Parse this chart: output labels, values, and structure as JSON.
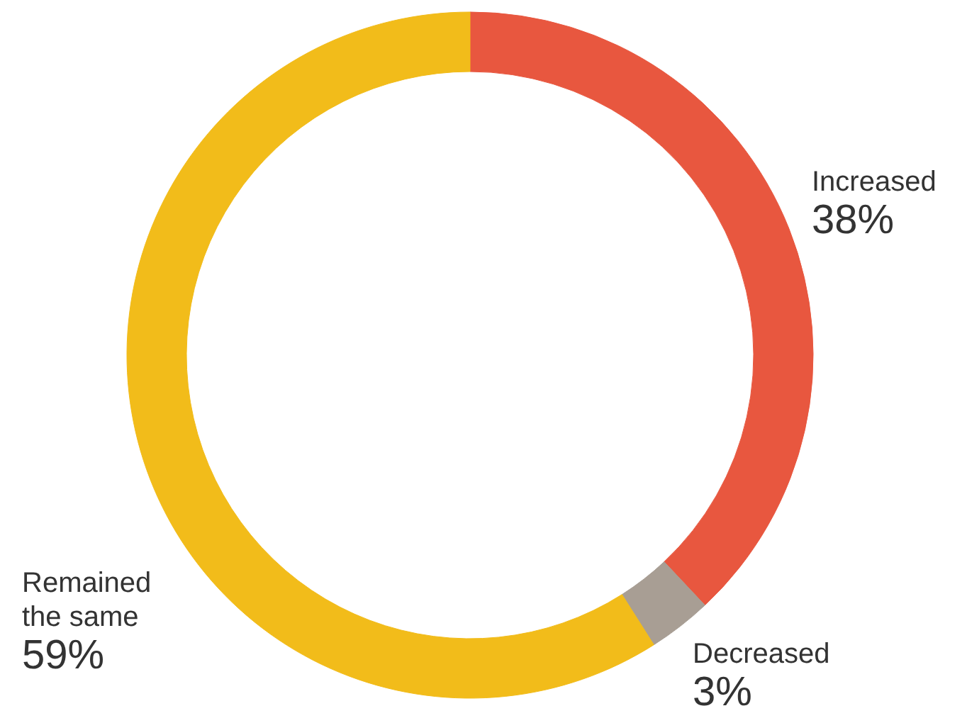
{
  "chart_data": {
    "type": "donut",
    "categories": [
      "Increased",
      "Decreased",
      "Remained the same"
    ],
    "values": [
      38,
      3,
      59
    ],
    "colors": [
      "#e8573f",
      "#a89e94",
      "#f2bc1a"
    ],
    "value_labels": [
      "38%",
      "3%",
      "59%"
    ]
  }
}
